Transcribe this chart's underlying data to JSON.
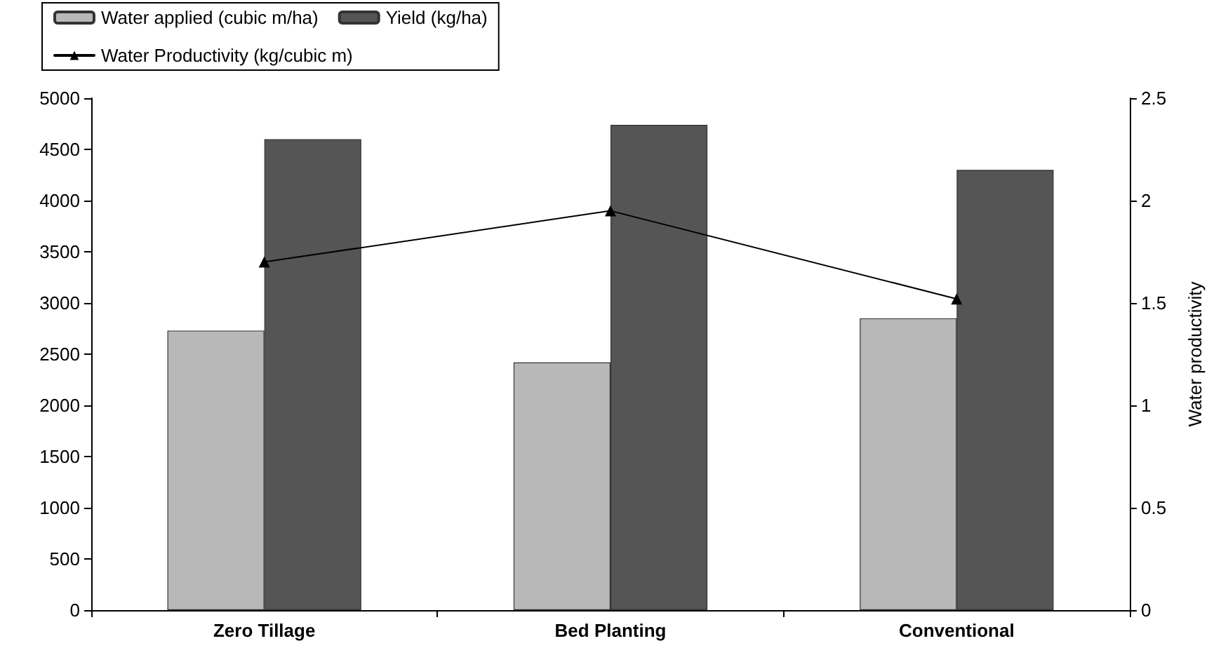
{
  "chart_data": {
    "type": "bar",
    "categories": [
      "Zero Tillage",
      "Bed Planting",
      "Conventional"
    ],
    "series": [
      {
        "name": "Water applied (cubic m/ha)",
        "color": "#b8b8b8",
        "values": [
          2730,
          2420,
          2850
        ]
      },
      {
        "name": "Yield (kg/ha)",
        "color": "#555555",
        "values": [
          4600,
          4740,
          4300
        ]
      },
      {
        "name": "Water Productivity (kg/cubic m)",
        "type": "line",
        "axis": "y2",
        "color": "#000000",
        "values": [
          1.7,
          1.95,
          1.52
        ]
      }
    ],
    "y2label": "Water productivity",
    "ylim": [
      0,
      5000
    ],
    "yticks": [
      0,
      500,
      1000,
      1500,
      2000,
      2500,
      3000,
      3500,
      4000,
      4500,
      5000
    ],
    "y2lim": [
      0,
      2.5
    ],
    "y2ticks": [
      0,
      0.5,
      1,
      1.5,
      2,
      2.5
    ],
    "grid": false,
    "legend": "top left",
    "marker": "triangle",
    "line_style": "solid"
  }
}
